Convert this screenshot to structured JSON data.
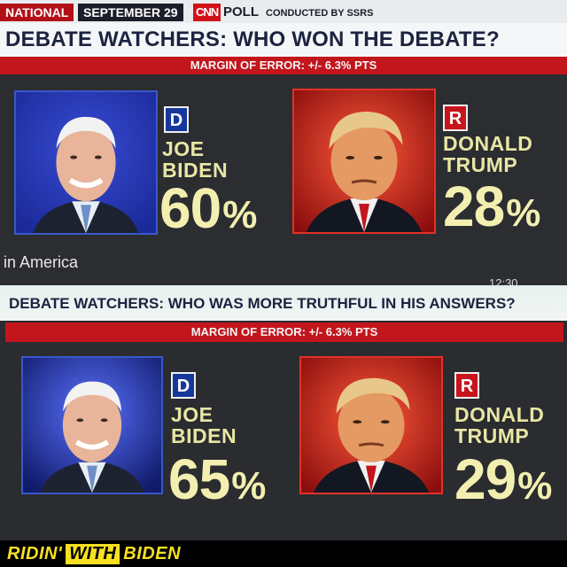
{
  "poll1": {
    "tag_national": "NATIONAL",
    "tag_date": "SEPTEMBER 29",
    "network": "CNN",
    "poll": "POLL",
    "conducted_by": "CONDUCTED BY SSRS",
    "question": "DEBATE WATCHERS: WHO WON THE DEBATE?",
    "margin": "MARGIN OF ERROR: +/- 6.3% PTS",
    "candidates": [
      {
        "party": "D",
        "first": "JOE",
        "last": "BIDEN",
        "value": "60",
        "unit": "%"
      },
      {
        "party": "R",
        "first": "DONALD",
        "last": "TRUMP",
        "value": "28",
        "unit": "%"
      }
    ],
    "ticker": "in America"
  },
  "clock": "12:30",
  "poll2": {
    "question": "DEBATE WATCHERS: WHO WAS MORE TRUTHFUL IN HIS ANSWERS?",
    "margin": "MARGIN OF ERROR: +/- 6.3% PTS",
    "candidates": [
      {
        "party": "D",
        "first": "JOE",
        "last": "BIDEN",
        "value": "65",
        "unit": "%"
      },
      {
        "party": "R",
        "first": "DONALD",
        "last": "TRUMP",
        "value": "29",
        "unit": "%"
      }
    ]
  },
  "footer": {
    "part1": "RIDIN'",
    "part2": "WITH",
    "part3": "BIDEN"
  },
  "colors": {
    "dem_blue": "#16379c",
    "rep_red": "#c8141c",
    "cnn_red": "#c2151c",
    "pct_yellow": "#f2efb0",
    "footer_yellow": "#f7e020"
  }
}
